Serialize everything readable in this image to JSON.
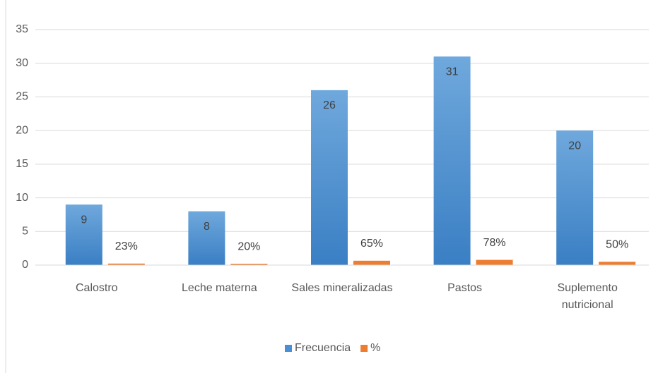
{
  "chart_data": {
    "type": "bar",
    "categories": [
      "Calostro",
      "Leche materna",
      "Sales mineralizadas",
      "Pastos",
      "Suplemento nutricional"
    ],
    "series": [
      {
        "name": "Frecuencia",
        "color": "#4a8fd3",
        "values": [
          9,
          8,
          26,
          31,
          20
        ]
      },
      {
        "name": "%",
        "color": "#ed7d31",
        "values": [
          0.23,
          0.2,
          0.65,
          0.78,
          0.5
        ],
        "value_labels": [
          "23%",
          "20%",
          "65%",
          "78%",
          "50%"
        ]
      }
    ],
    "ylim": [
      0,
      35
    ],
    "yticks": [
      0,
      5,
      10,
      15,
      20,
      25,
      30,
      35
    ],
    "grid": true,
    "legend": "bottom"
  }
}
